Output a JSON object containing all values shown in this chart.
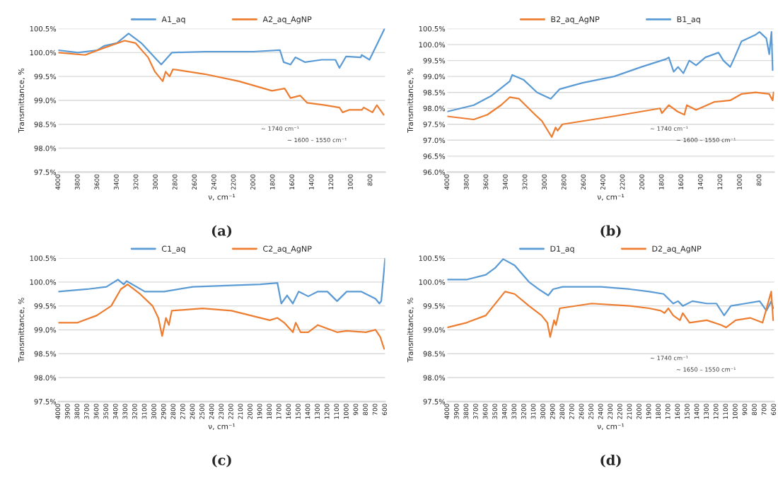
{
  "chart_data": [
    {
      "type": "line",
      "xlabel": "ν, cm⁻¹",
      "ylabel": "Transmittance, %",
      "xlim": [
        4000,
        650
      ],
      "xticks": [
        4000,
        3800,
        3600,
        3400,
        3200,
        3000,
        2800,
        2600,
        2400,
        2200,
        2000,
        1800,
        1600,
        1400,
        1200,
        1000,
        800
      ],
      "ylim": [
        97.5,
        100.5
      ],
      "yticks": [
        {
          "value": 97.5,
          "label": "97.5%"
        },
        {
          "value": 98.0,
          "label": "98.0%"
        },
        {
          "value": 98.5,
          "label": "98.5%"
        },
        {
          "value": 99.0,
          "label": "99.0%"
        },
        {
          "value": 99.5,
          "label": "99.5%"
        },
        {
          "value": 100.0,
          "label": "100.0%"
        },
        {
          "value": 100.5,
          "label": "100.5%"
        }
      ],
      "grid": "y",
      "legend": "top",
      "marker": "none",
      "line_style": "solid",
      "series": [
        {
          "name": "A1_aq",
          "color": "#5b9bd5",
          "x": [
            4000,
            3800,
            3600,
            3530,
            3400,
            3280,
            3150,
            2945,
            2835,
            2500,
            2000,
            1728,
            1690,
            1620,
            1570,
            1470,
            1300,
            1160,
            1118,
            1050,
            900,
            890,
            810,
            655
          ],
          "values": [
            100.05,
            100.0,
            100.05,
            100.14,
            100.2,
            100.4,
            100.2,
            99.75,
            100.0,
            100.02,
            100.02,
            100.05,
            99.8,
            99.75,
            99.9,
            99.8,
            99.85,
            99.85,
            99.68,
            99.92,
            99.9,
            99.95,
            99.85,
            100.5
          ]
        },
        {
          "name": "A2_aq_AgNP",
          "color": "#ed7d31",
          "x": [
            4000,
            3725,
            3530,
            3320,
            3210,
            3080,
            3010,
            2930,
            2900,
            2860,
            2825,
            2500,
            2150,
            1810,
            1680,
            1620,
            1520,
            1450,
            1270,
            1118,
            1085,
            1020,
            890,
            870,
            780,
            735,
            665
          ],
          "values": [
            100.0,
            99.95,
            100.1,
            100.25,
            100.2,
            99.9,
            99.6,
            99.4,
            99.6,
            99.5,
            99.65,
            99.55,
            99.4,
            99.2,
            99.25,
            99.05,
            99.1,
            98.95,
            98.9,
            98.85,
            98.75,
            98.8,
            98.8,
            98.85,
            98.75,
            98.9,
            98.7
          ]
        }
      ],
      "annotations": [
        "(a)",
        "~ 1740 cm⁻¹",
        "~ 1600 – 1550 cm⁻¹"
      ]
    },
    {
      "type": "line",
      "xlabel": "ν, cm⁻¹",
      "ylabel": "Transmittance, %",
      "xlim": [
        4000,
        650
      ],
      "xticks": [
        4000,
        3800,
        3600,
        3400,
        3200,
        3000,
        2800,
        2600,
        2400,
        2200,
        2000,
        1800,
        1600,
        1400,
        1200,
        1000,
        800
      ],
      "ylim": [
        96.0,
        100.5
      ],
      "yticks": [
        {
          "value": 96.0,
          "label": "96.0%"
        },
        {
          "value": 96.5,
          "label": "96.5%"
        },
        {
          "value": 97.0,
          "label": "97.0%"
        },
        {
          "value": 97.5,
          "label": "97.5%"
        },
        {
          "value": 98.0,
          "label": "98.0%"
        },
        {
          "value": 98.5,
          "label": "98.5%"
        },
        {
          "value": 99.0,
          "label": "99.0%"
        },
        {
          "value": 99.5,
          "label": "99.5%"
        },
        {
          "value": 100.0,
          "label": "100.0%"
        },
        {
          "value": 100.5,
          "label": "100.5%"
        }
      ],
      "grid": "y",
      "legend": "top",
      "marker": "none",
      "line_style": "solid",
      "series": [
        {
          "name": "B2_aq_AgNP",
          "color": "#ed7d31",
          "x": [
            4000,
            3730,
            3590,
            3450,
            3360,
            3265,
            3100,
            3030,
            2930,
            2890,
            2870,
            2820,
            2300,
            1820,
            1800,
            1730,
            1640,
            1570,
            1545,
            1450,
            1265,
            1100,
            985,
            840,
            700,
            665,
            655
          ],
          "values": [
            97.75,
            97.65,
            97.8,
            98.1,
            98.35,
            98.3,
            97.8,
            97.6,
            97.1,
            97.4,
            97.3,
            97.5,
            97.75,
            98.0,
            97.85,
            98.1,
            97.9,
            97.8,
            98.1,
            97.95,
            98.2,
            98.25,
            98.45,
            98.5,
            98.45,
            98.25,
            98.5
          ]
        },
        {
          "name": "B1_aq",
          "color": "#5b9bd5",
          "x": [
            4000,
            3730,
            3545,
            3360,
            3335,
            3220,
            3080,
            2940,
            2850,
            2613,
            2290,
            2010,
            1755,
            1730,
            1680,
            1635,
            1580,
            1520,
            1450,
            1355,
            1220,
            1170,
            1100,
            1055,
            985,
            845,
            800,
            730,
            700,
            677,
            665
          ],
          "values": [
            97.9,
            98.1,
            98.4,
            98.85,
            99.05,
            98.9,
            98.5,
            98.3,
            98.6,
            98.8,
            99.0,
            99.3,
            99.55,
            99.6,
            99.15,
            99.3,
            99.1,
            99.5,
            99.35,
            99.6,
            99.75,
            99.5,
            99.3,
            99.6,
            100.1,
            100.3,
            100.4,
            100.2,
            99.7,
            100.4,
            99.2
          ]
        }
      ],
      "annotations": [
        "(b)",
        "~ 1740 cm⁻¹",
        "~ 1600 – 1550 cm⁻¹"
      ]
    },
    {
      "type": "line",
      "xlabel": "ν, cm⁻¹",
      "ylabel": "Transmittance, %",
      "xlim": [
        4000,
        600
      ],
      "xticks": [
        4000,
        3900,
        3800,
        3700,
        3600,
        3500,
        3400,
        3300,
        3200,
        3100,
        3000,
        2900,
        2800,
        2700,
        2600,
        2500,
        2400,
        2300,
        2200,
        2100,
        2000,
        1900,
        1800,
        1700,
        1600,
        1500,
        1400,
        1300,
        1200,
        1100,
        1000,
        900,
        800,
        700,
        600
      ],
      "ylim": [
        97.5,
        100.5
      ],
      "yticks": [
        {
          "value": 97.5,
          "label": "97.5%"
        },
        {
          "value": 98.0,
          "label": "98.0%"
        },
        {
          "value": 98.5,
          "label": "98.5%"
        },
        {
          "value": 99.0,
          "label": "99.0%"
        },
        {
          "value": 99.5,
          "label": "99.5%"
        },
        {
          "value": 100.0,
          "label": "100.0%"
        },
        {
          "value": 100.5,
          "label": "100.5%"
        }
      ],
      "grid": "y",
      "legend": "top",
      "marker": "none",
      "line_style": "solid",
      "series": [
        {
          "name": "C1_aq",
          "color": "#5b9bd5",
          "x": [
            4000,
            3700,
            3500,
            3380,
            3320,
            3290,
            3100,
            2900,
            2600,
            2200,
            1900,
            1720,
            1680,
            1620,
            1560,
            1500,
            1400,
            1300,
            1200,
            1100,
            1000,
            850,
            700,
            660,
            640,
            600
          ],
          "values": [
            99.8,
            99.85,
            99.9,
            100.05,
            99.95,
            100.02,
            99.8,
            99.8,
            99.9,
            99.93,
            99.95,
            99.98,
            99.55,
            99.72,
            99.55,
            99.8,
            99.7,
            99.8,
            99.8,
            99.6,
            99.8,
            99.8,
            99.65,
            99.55,
            99.6,
            100.5
          ]
        },
        {
          "name": "C2_aq_AgNP",
          "color": "#ed7d31",
          "x": [
            4000,
            3800,
            3600,
            3450,
            3350,
            3280,
            3150,
            3020,
            2960,
            2920,
            2880,
            2850,
            2820,
            2500,
            2200,
            1800,
            1720,
            1650,
            1560,
            1530,
            1480,
            1400,
            1300,
            1100,
            1000,
            800,
            700,
            650,
            610
          ],
          "values": [
            99.15,
            99.15,
            99.3,
            99.5,
            99.85,
            99.95,
            99.75,
            99.5,
            99.25,
            98.87,
            99.25,
            99.1,
            99.4,
            99.45,
            99.4,
            99.2,
            99.25,
            99.15,
            98.95,
            99.15,
            98.95,
            98.95,
            99.1,
            98.95,
            98.98,
            98.95,
            99.0,
            98.85,
            98.6
          ]
        }
      ],
      "annotations": [
        "(c)"
      ]
    },
    {
      "type": "line",
      "xlabel": "ν, cm⁻¹",
      "ylabel": "Transmittance, %",
      "xlim": [
        4000,
        600
      ],
      "xticks": [
        4000,
        3900,
        3800,
        3700,
        3600,
        3500,
        3400,
        3300,
        3200,
        3100,
        3000,
        2900,
        2800,
        2700,
        2600,
        2500,
        2400,
        2300,
        2200,
        2100,
        2000,
        1900,
        1800,
        1700,
        1600,
        1500,
        1400,
        1300,
        1200,
        1100,
        1000,
        900,
        800,
        700,
        600
      ],
      "ylim": [
        97.5,
        100.5
      ],
      "yticks": [
        {
          "value": 97.5,
          "label": "97.5%"
        },
        {
          "value": 98.0,
          "label": "98.0%"
        },
        {
          "value": 98.5,
          "label": "98.5%"
        },
        {
          "value": 99.0,
          "label": "99.0%"
        },
        {
          "value": 99.5,
          "label": "99.5%"
        },
        {
          "value": 100.0,
          "label": "100.0%"
        },
        {
          "value": 100.5,
          "label": "100.5%"
        }
      ],
      "grid": "y",
      "legend": "top",
      "marker": "none",
      "line_style": "solid",
      "series": [
        {
          "name": "D1_aq",
          "color": "#5b9bd5",
          "x": [
            4000,
            3800,
            3600,
            3500,
            3420,
            3300,
            3150,
            3050,
            2950,
            2900,
            2800,
            2400,
            2100,
            1900,
            1750,
            1650,
            1600,
            1550,
            1450,
            1300,
            1200,
            1120,
            1050,
            900,
            750,
            680,
            630,
            610
          ],
          "values": [
            100.05,
            100.05,
            100.15,
            100.3,
            100.48,
            100.35,
            100.0,
            99.85,
            99.72,
            99.85,
            99.9,
            99.9,
            99.85,
            99.8,
            99.75,
            99.55,
            99.6,
            99.5,
            99.6,
            99.55,
            99.55,
            99.3,
            99.5,
            99.55,
            99.6,
            99.4,
            99.6,
            99.45
          ]
        },
        {
          "name": "D2_aq_AgNP",
          "color": "#ed7d31",
          "x": [
            4000,
            3800,
            3600,
            3480,
            3400,
            3300,
            3150,
            3020,
            2960,
            2930,
            2890,
            2870,
            2830,
            2500,
            2100,
            1900,
            1780,
            1740,
            1700,
            1650,
            1580,
            1550,
            1480,
            1300,
            1150,
            1100,
            1000,
            850,
            720,
            630,
            610
          ],
          "values": [
            99.05,
            99.15,
            99.3,
            99.6,
            99.8,
            99.75,
            99.5,
            99.3,
            99.15,
            98.85,
            99.2,
            99.1,
            99.45,
            99.55,
            99.5,
            99.45,
            99.4,
            99.35,
            99.45,
            99.3,
            99.2,
            99.35,
            99.15,
            99.2,
            99.1,
            99.05,
            99.2,
            99.25,
            99.15,
            99.8,
            99.2
          ]
        }
      ],
      "annotations": [
        "(d)",
        "~ 1740 cm⁻¹",
        "~ 1650 – 1550 cm⁻¹"
      ]
    }
  ]
}
